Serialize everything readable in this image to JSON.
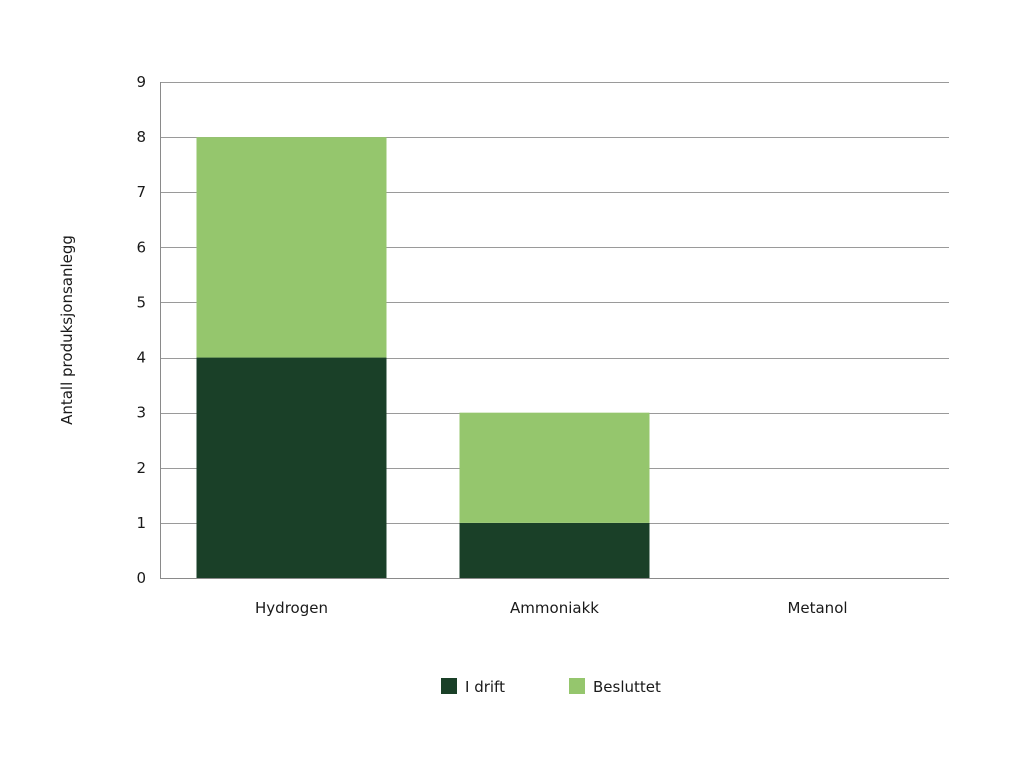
{
  "chart_data": {
    "type": "bar",
    "stacked": true,
    "title": "",
    "xlabel": "",
    "ylabel": "Antall produksjonsanlegg",
    "categories": [
      "Hydrogen",
      "Ammoniakk",
      "Metanol"
    ],
    "series": [
      {
        "name": "I drift",
        "values": [
          4,
          1,
          0
        ],
        "color": "#1a4028"
      },
      {
        "name": "Besluttet",
        "values": [
          4,
          2,
          0
        ],
        "color": "#95c66d"
      }
    ],
    "ylim": [
      0,
      9
    ],
    "yticks": [
      0,
      1,
      2,
      3,
      4,
      5,
      6,
      7,
      8,
      9
    ],
    "grid": true,
    "legend_position": "bottom-center"
  }
}
